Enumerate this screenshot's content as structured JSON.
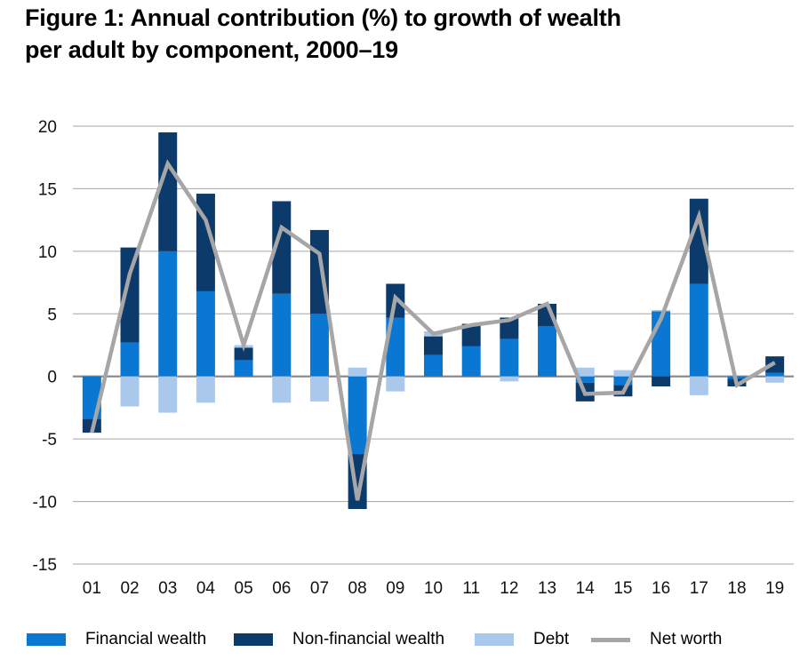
{
  "title_line1": "Figure 1: Annual contribution (%) to growth of wealth",
  "title_line2": "per adult by component, 2000–19",
  "colors": {
    "financial": "#0a78d2",
    "non_financial": "#0b3a6b",
    "debt": "#a9c8ec",
    "net_worth": "#a6a6a6",
    "grid": "#a6a6a6"
  },
  "chart_data": {
    "type": "bar",
    "stacked": true,
    "categories": [
      "01",
      "02",
      "03",
      "04",
      "05",
      "06",
      "07",
      "08",
      "09",
      "10",
      "11",
      "12",
      "13",
      "14",
      "15",
      "16",
      "17",
      "18",
      "19"
    ],
    "ylim": [
      -15,
      20
    ],
    "yticks": [
      20,
      15,
      10,
      5,
      0,
      -5,
      -10,
      -15
    ],
    "ytick_labels": [
      "20",
      "15",
      "10",
      "5",
      "0",
      "-5",
      "-10",
      "-15"
    ],
    "grid": true,
    "legend_position": "bottom",
    "series": [
      {
        "name": "Financial wealth",
        "kind": "bar",
        "values": [
          -3.4,
          2.7,
          10.0,
          6.8,
          1.3,
          6.6,
          5.0,
          -6.2,
          4.7,
          1.7,
          2.4,
          3.0,
          4.0,
          -0.5,
          -0.7,
          5.2,
          7.4,
          -0.2,
          0.3
        ]
      },
      {
        "name": "Non-financial wealth",
        "kind": "bar",
        "values": [
          -1.1,
          7.6,
          9.5,
          7.8,
          1.0,
          7.4,
          6.7,
          -4.4,
          2.7,
          1.5,
          1.8,
          1.7,
          1.8,
          -1.5,
          -0.9,
          -0.8,
          6.8,
          -0.6,
          1.3
        ]
      },
      {
        "name": "Debt",
        "kind": "bar",
        "values": [
          0.0,
          -2.4,
          -2.9,
          -2.1,
          0.2,
          -2.1,
          -2.0,
          0.7,
          -1.2,
          0.4,
          0.0,
          -0.4,
          0.0,
          0.7,
          0.5,
          0.1,
          -1.5,
          0.0,
          -0.5
        ]
      },
      {
        "name": "Net worth",
        "kind": "line",
        "values": [
          -4.5,
          8.2,
          17.0,
          12.5,
          2.5,
          11.9,
          9.8,
          -9.9,
          6.3,
          3.4,
          4.1,
          4.5,
          5.8,
          -1.4,
          -1.3,
          4.6,
          12.8,
          -0.7,
          1.1
        ]
      }
    ]
  },
  "legend": [
    {
      "label": "Financial wealth",
      "style": "swatch",
      "color_key": "financial"
    },
    {
      "label": "Non-financial wealth",
      "style": "swatch",
      "color_key": "non_financial"
    },
    {
      "label": "Debt",
      "style": "swatch",
      "color_key": "debt"
    },
    {
      "label": "Net worth",
      "style": "line",
      "color_key": "net_worth"
    }
  ]
}
